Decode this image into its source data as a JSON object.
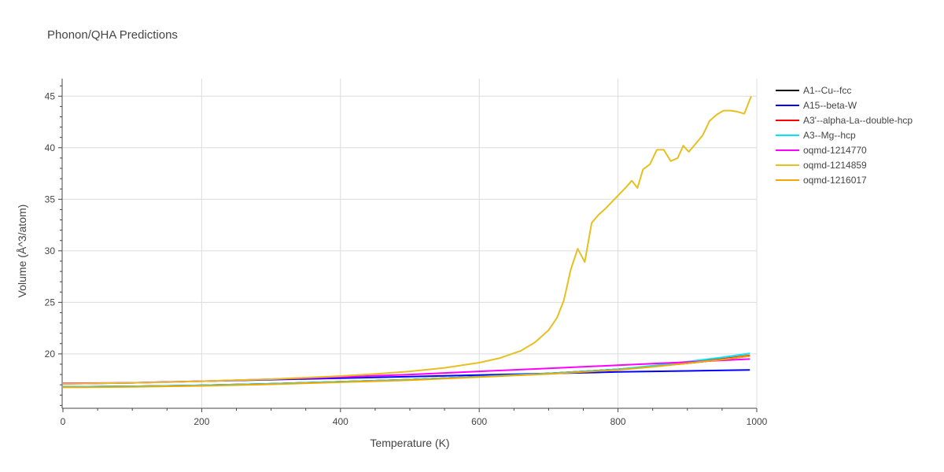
{
  "chart_data": {
    "type": "line",
    "title": "Phonon/QHA Predictions",
    "xlabel": "Temperature (K)",
    "ylabel": "Volume (Å^3/atom)",
    "xlim": [
      0,
      1000
    ],
    "ylim": [
      14.8,
      46.7
    ],
    "xticks": [
      0,
      200,
      400,
      600,
      800,
      1000
    ],
    "yticks": [
      20,
      25,
      30,
      35,
      40,
      45
    ],
    "grid": true,
    "legend_position": "top-right",
    "series": [
      {
        "name": "A1--Cu--fcc",
        "color": "#000000",
        "x": [
          0,
          100,
          200,
          300,
          400,
          500,
          600,
          700,
          800,
          850,
          900,
          950,
          990
        ],
        "y": [
          16.8,
          16.85,
          16.95,
          17.1,
          17.3,
          17.5,
          17.8,
          18.1,
          18.5,
          18.8,
          19.1,
          19.45,
          19.8
        ]
      },
      {
        "name": "A15--beta-W",
        "color": "#0000ff",
        "x": [
          0,
          100,
          200,
          300,
          400,
          500,
          600,
          700,
          800,
          900,
          990
        ],
        "y": [
          17.1,
          17.2,
          17.35,
          17.5,
          17.65,
          17.8,
          17.95,
          18.1,
          18.25,
          18.35,
          18.45
        ]
      },
      {
        "name": "A3'--alpha-La--double-hcp",
        "color": "#ff0000",
        "x": [
          0,
          100,
          200,
          300,
          400,
          500,
          600,
          700,
          800,
          850,
          900,
          950,
          990
        ],
        "y": [
          16.8,
          16.85,
          16.95,
          17.1,
          17.3,
          17.5,
          17.8,
          18.1,
          18.5,
          18.8,
          19.15,
          19.5,
          19.85
        ]
      },
      {
        "name": "A3--Mg--hcp",
        "color": "#00e5ff",
        "x": [
          0,
          100,
          200,
          300,
          400,
          500,
          600,
          700,
          800,
          850,
          900,
          950,
          990
        ],
        "y": [
          16.8,
          16.85,
          16.95,
          17.1,
          17.3,
          17.5,
          17.8,
          18.1,
          18.5,
          18.85,
          19.25,
          19.65,
          20.05
        ]
      },
      {
        "name": "oqmd-1214770",
        "color": "#ff00ff",
        "x": [
          0,
          100,
          200,
          300,
          400,
          500,
          600,
          700,
          800,
          900,
          990
        ],
        "y": [
          17.15,
          17.2,
          17.35,
          17.55,
          17.75,
          18.0,
          18.3,
          18.6,
          18.9,
          19.2,
          19.5
        ]
      },
      {
        "name": "oqmd-1214859",
        "color": "#e6c020",
        "x": [
          0,
          50,
          100,
          150,
          200,
          250,
          300,
          350,
          400,
          450,
          500,
          550,
          600,
          630,
          660,
          680,
          700,
          712,
          722,
          732,
          742,
          752,
          762,
          772,
          782,
          792,
          802,
          812,
          820,
          828,
          836,
          846,
          856,
          866,
          876,
          886,
          894,
          902,
          912,
          922,
          932,
          942,
          952,
          962,
          972,
          982,
          992
        ],
        "y": [
          17.1,
          17.15,
          17.2,
          17.25,
          17.35,
          17.45,
          17.55,
          17.7,
          17.85,
          18.05,
          18.3,
          18.65,
          19.15,
          19.6,
          20.3,
          21.1,
          22.3,
          23.5,
          25.2,
          28.2,
          30.2,
          28.9,
          32.7,
          33.5,
          34.1,
          34.8,
          35.5,
          36.2,
          36.8,
          36.1,
          37.9,
          38.4,
          39.8,
          39.8,
          38.7,
          39.0,
          40.2,
          39.6,
          40.4,
          41.2,
          42.6,
          43.2,
          43.6,
          43.6,
          43.5,
          43.3,
          45.0
        ]
      },
      {
        "name": "oqmd-1216017",
        "color": "#f0a800",
        "x": [
          0,
          100,
          200,
          300,
          400,
          500,
          600,
          700,
          800,
          850,
          900,
          950,
          990
        ],
        "y": [
          16.75,
          16.8,
          16.9,
          17.05,
          17.25,
          17.45,
          17.75,
          18.05,
          18.45,
          18.75,
          19.1,
          19.45,
          19.8
        ]
      }
    ]
  }
}
